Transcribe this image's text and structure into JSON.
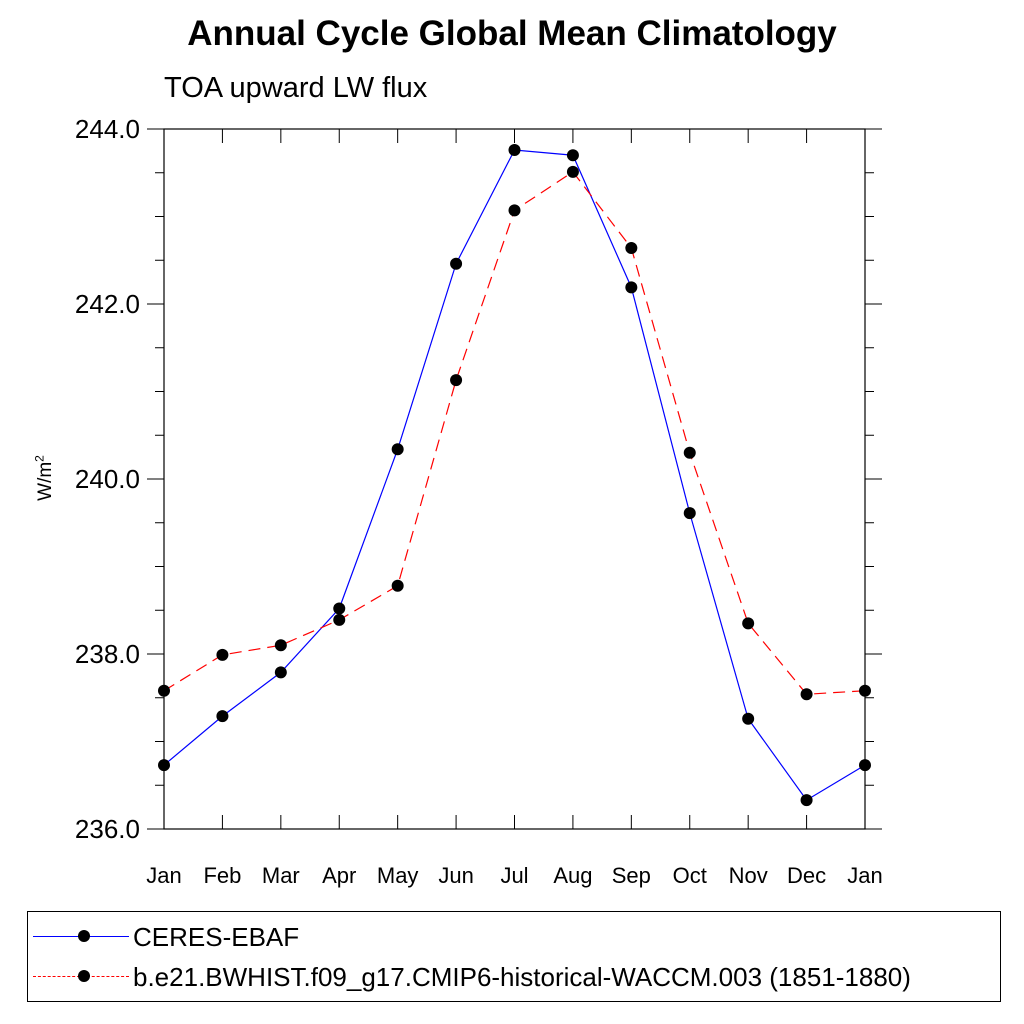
{
  "title": "Annual Cycle Global Mean Climatology",
  "subtitle": "TOA upward LW flux",
  "colors": {
    "ceres": "#0000ff",
    "model": "#ff0000",
    "marker": "#000000"
  },
  "chart_data": {
    "type": "line",
    "title": "Annual Cycle Global Mean Climatology",
    "subtitle": "TOA upward LW flux",
    "ylabel": "W/m",
    "ylabel_sup": "2",
    "xlabel": "",
    "categories": [
      "Jan",
      "Feb",
      "Mar",
      "Apr",
      "May",
      "Jun",
      "Jul",
      "Aug",
      "Sep",
      "Oct",
      "Nov",
      "Dec",
      "Jan"
    ],
    "ylim": [
      236.0,
      244.0
    ],
    "yticks": [
      "236.0",
      "238.0",
      "240.0",
      "242.0",
      "244.0"
    ],
    "legend_position": "bottom",
    "grid": false,
    "series": [
      {
        "name": "CERES-EBAF",
        "color": "#0000ff",
        "line_style": "solid",
        "values": [
          236.73,
          237.29,
          237.79,
          238.52,
          240.34,
          242.46,
          243.76,
          243.7,
          242.19,
          239.61,
          237.26,
          236.33,
          236.73
        ]
      },
      {
        "name": "b.e21.BWHIST.f09_g17.CMIP6-historical-WACCM.003 (1851-1880)",
        "color": "#ff0000",
        "line_style": "dashed",
        "values": [
          237.58,
          237.99,
          238.1,
          238.39,
          238.78,
          241.13,
          243.07,
          243.51,
          242.64,
          240.3,
          238.35,
          237.54,
          237.58
        ]
      }
    ]
  }
}
